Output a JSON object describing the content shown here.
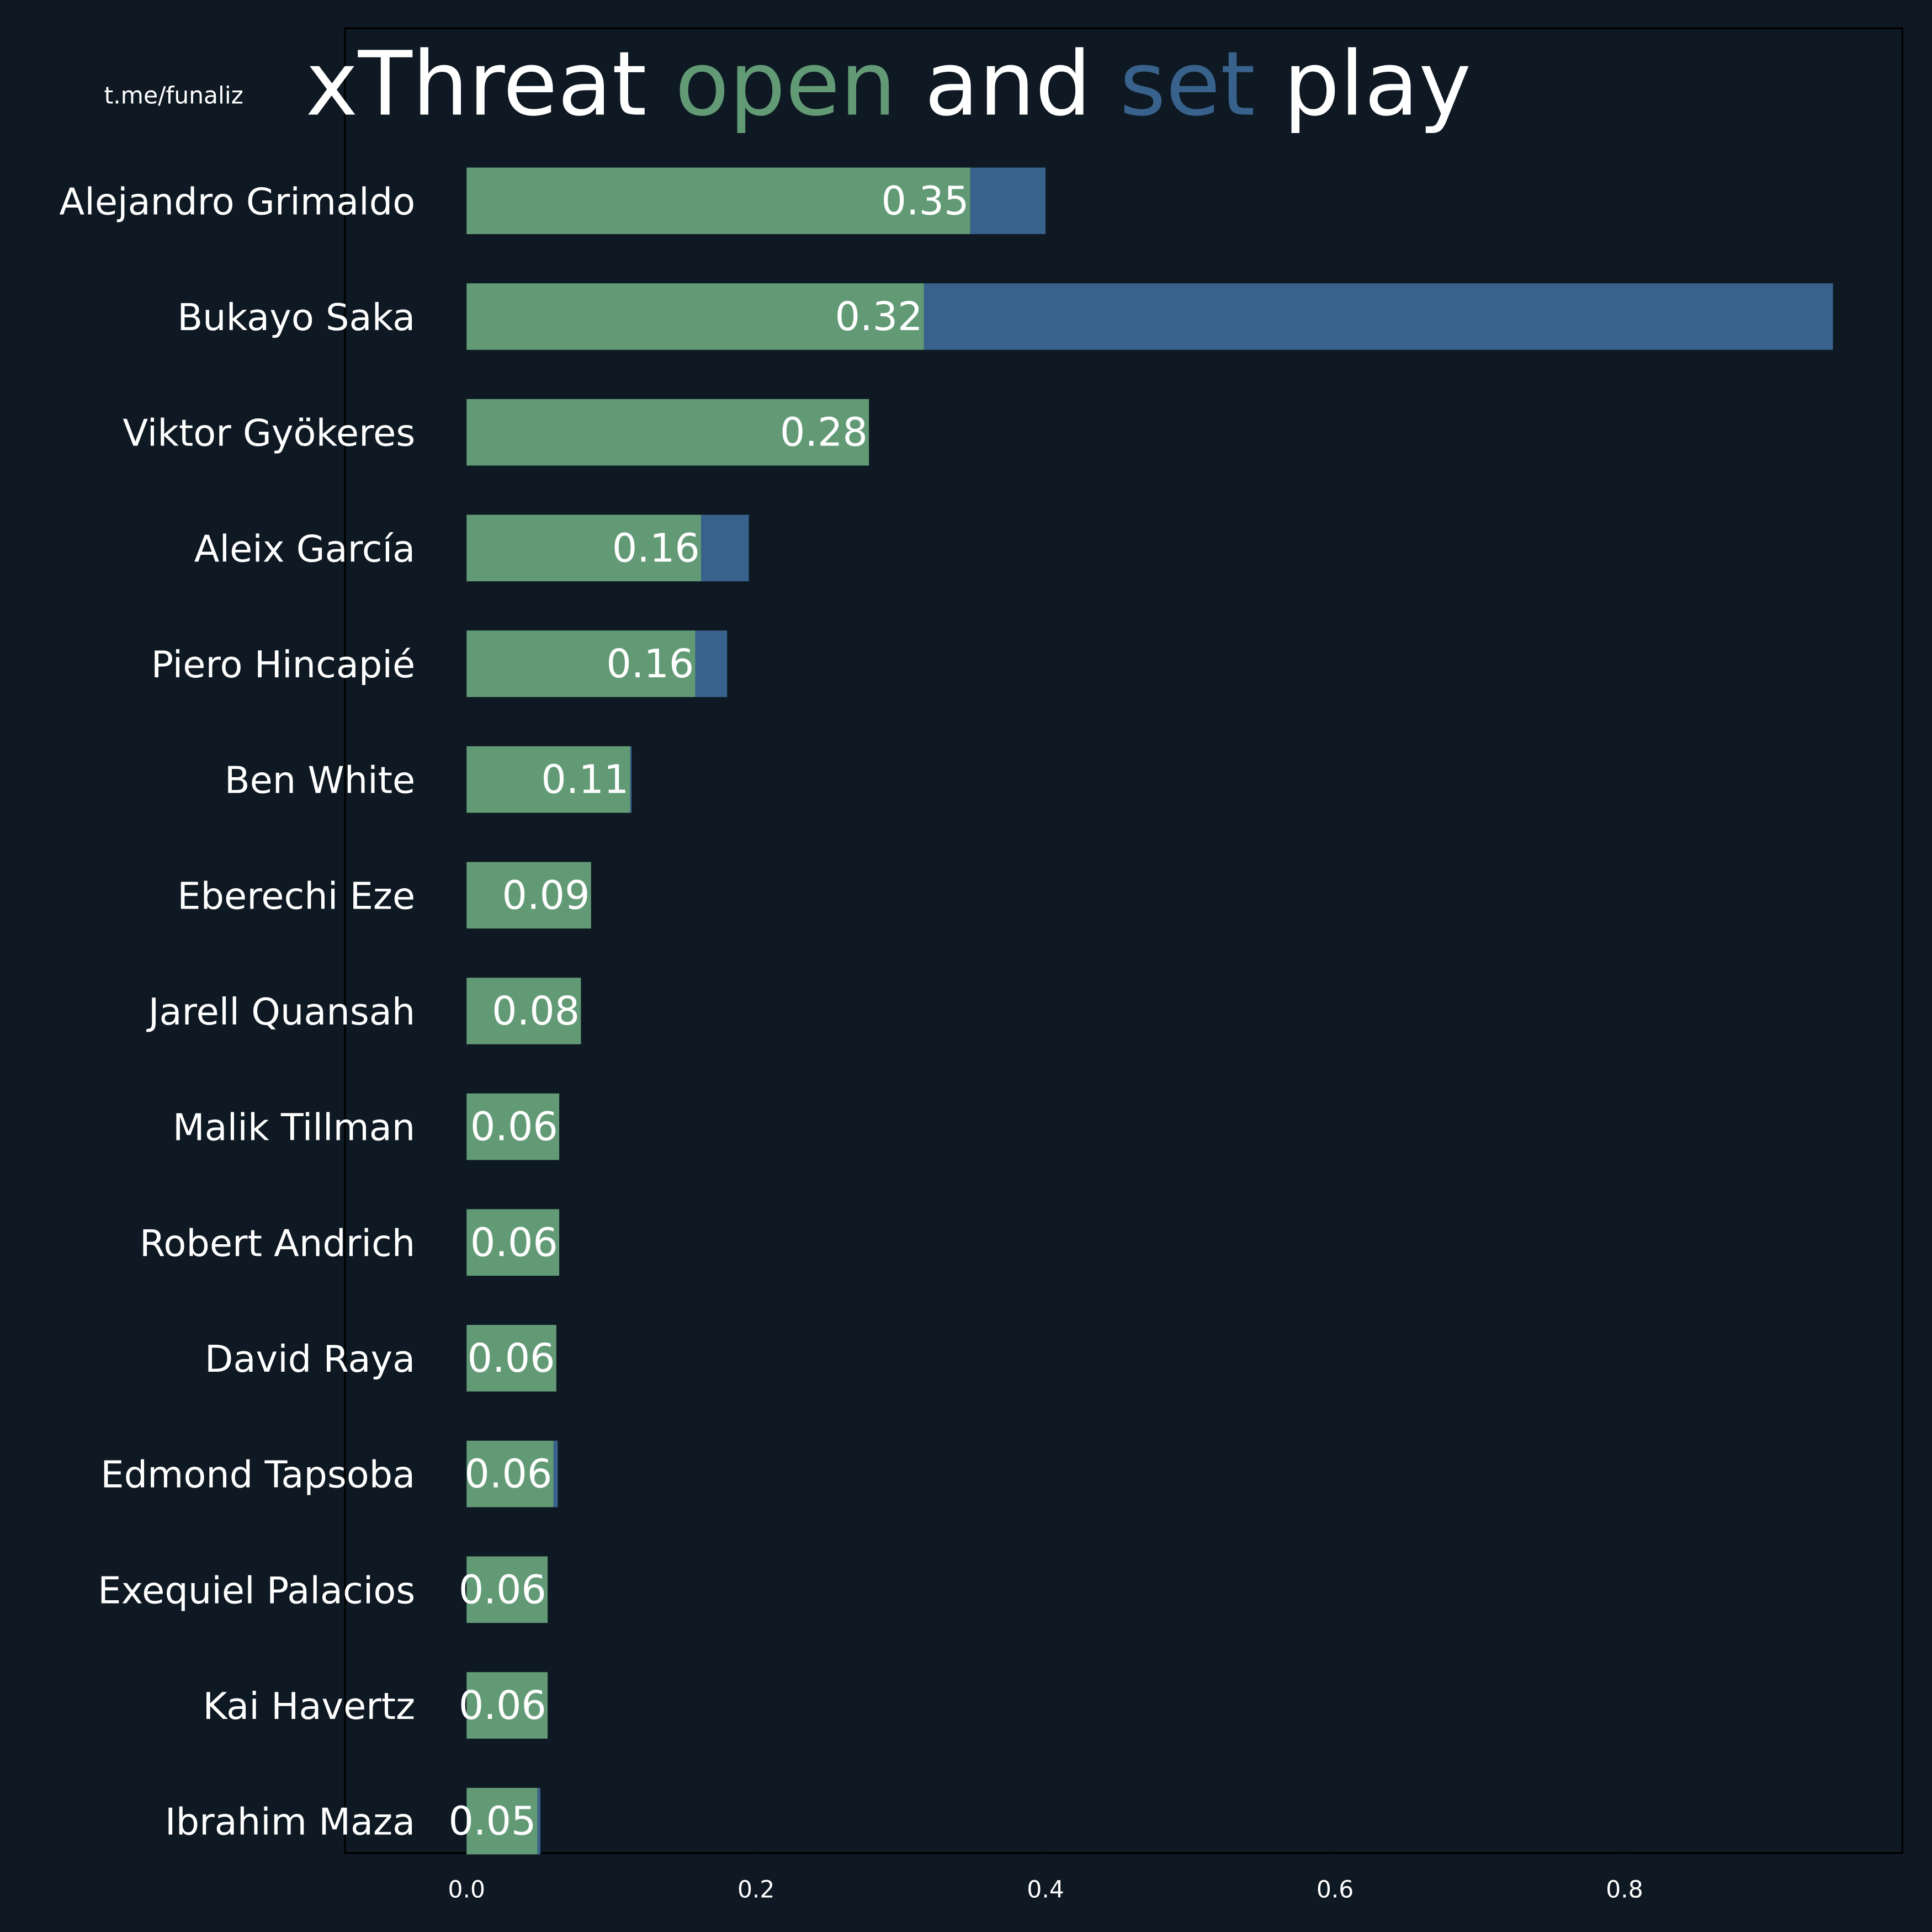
{
  "chart_data": {
    "type": "stacked_barh",
    "title_parts": [
      "xThreat",
      "and",
      "play"
    ],
    "watermark": "t.me/funaliz",
    "categories": [
      "Alejandro Grimaldo",
      "Bukayo Saka",
      "Viktor Gyökeres",
      "Aleix García",
      "Piero Hincapié",
      "Ben White",
      "Eberechi Eze",
      "Jarell Quansah",
      "Malik Tillman",
      "Robert Andrich",
      "David Raya",
      "Edmond Tapsoba",
      "Exequiel Palacios",
      "Kai Havertz",
      "Ibrahim Maza"
    ],
    "series": [
      {
        "name": "open",
        "color": "#629a76",
        "values": [
          0.348,
          0.316,
          0.278,
          0.162,
          0.158,
          0.113,
          0.086,
          0.079,
          0.064,
          0.064,
          0.062,
          0.06,
          0.056,
          0.056,
          0.049
        ],
        "value_labels": [
          "0.35",
          "0.32",
          "0.28",
          "0.16",
          "0.16",
          "0.11",
          "0.09",
          "0.08",
          "0.06",
          "0.06",
          "0.06",
          "0.06",
          "0.06",
          "0.06",
          "0.05"
        ]
      },
      {
        "name": "set",
        "color": "#38628c",
        "values": [
          0.052,
          0.628,
          0,
          0.033,
          0.022,
          0.001,
          0,
          0,
          0,
          0,
          0,
          0.003,
          0,
          0,
          0.002
        ]
      }
    ],
    "xlim": [
      -0.084,
      0.992
    ],
    "xticks": [
      {
        "value": 0,
        "label": "0.0"
      },
      0.2,
      0.4,
      0.6,
      0.8
    ]
  }
}
